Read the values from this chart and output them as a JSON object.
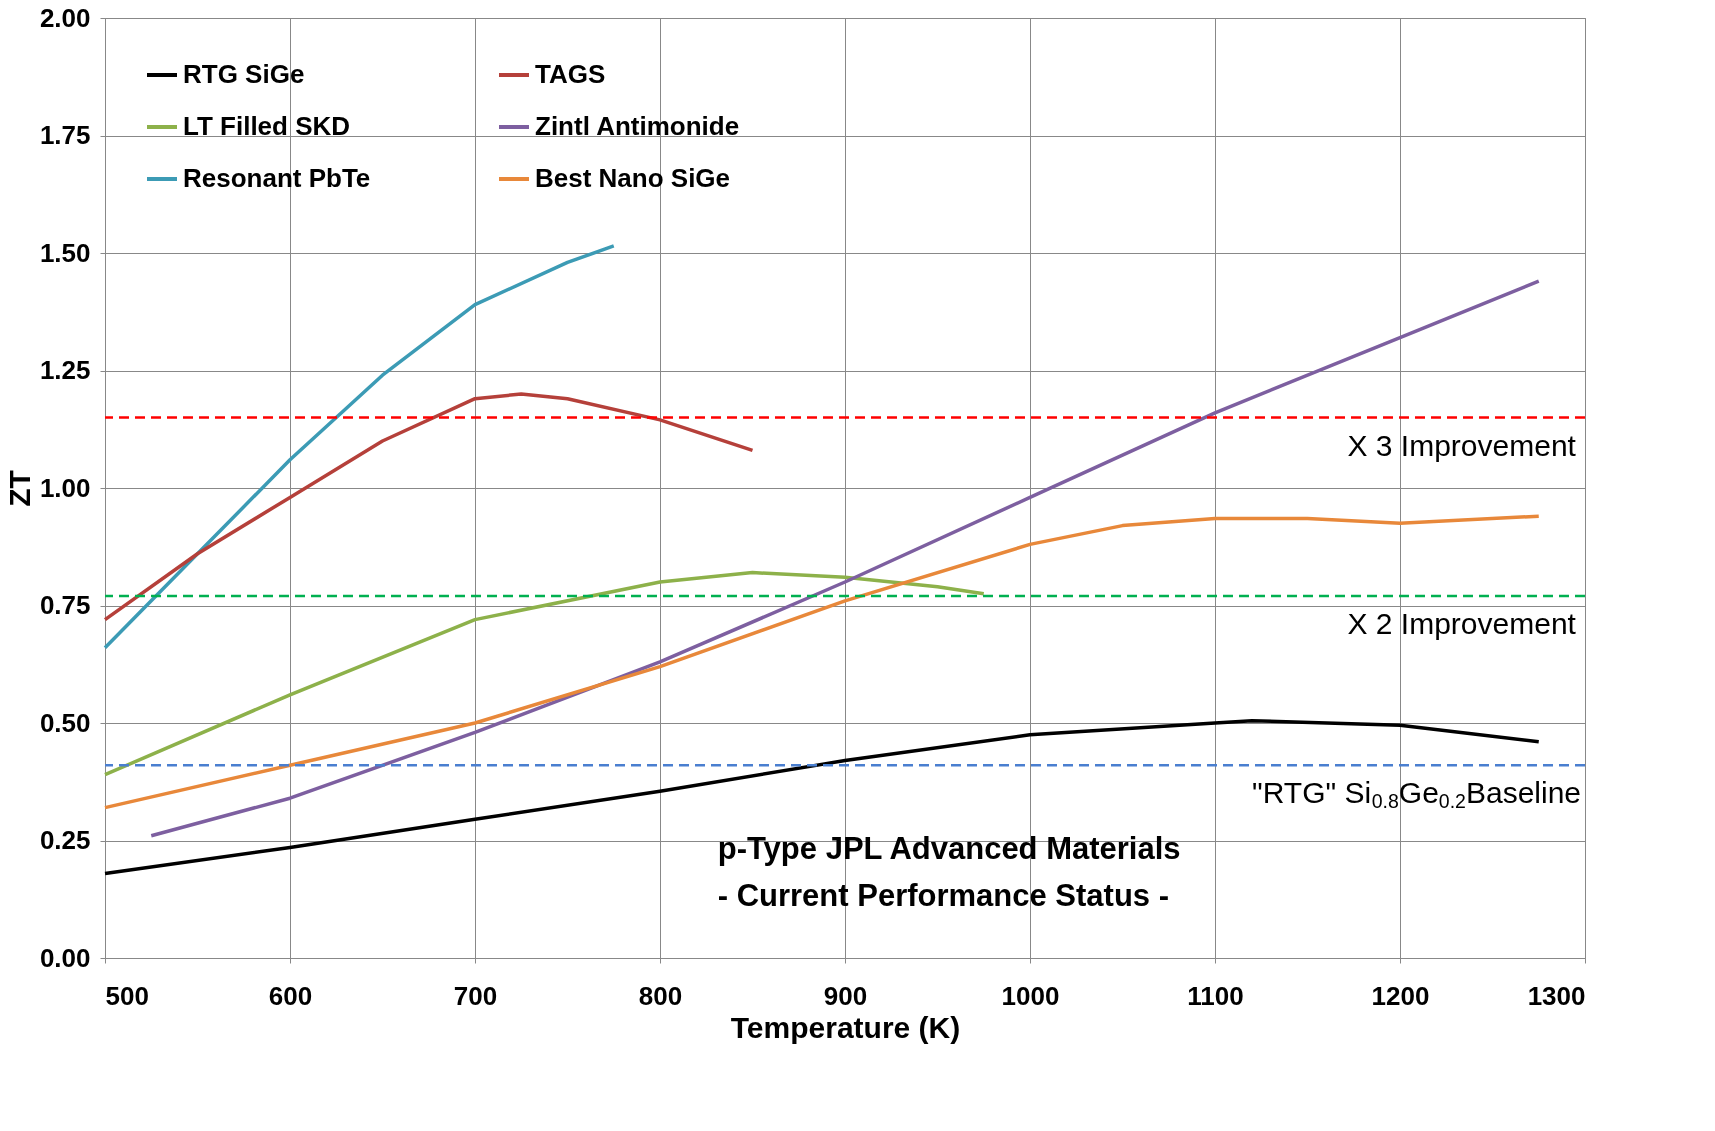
{
  "chart_data": {
    "type": "line",
    "title": "p-Type JPL Advanced Materials",
    "subtitle": "- Current Performance Status -",
    "xlabel": "Temperature (K)",
    "ylabel": "ZT",
    "xlim": [
      500,
      1300
    ],
    "xticks": [
      500,
      600,
      700,
      800,
      900,
      1000,
      1100,
      1200,
      1300
    ],
    "ylim": [
      0,
      2
    ],
    "yticks": [
      {
        "value": 0,
        "label": "0.00"
      },
      {
        "value": 0.25,
        "label": "0.25"
      },
      {
        "value": 0.5,
        "label": "0.50"
      },
      {
        "value": 0.75,
        "label": "0.75"
      },
      {
        "value": 1,
        "label": "1.00"
      },
      {
        "value": 1.25,
        "label": "1.25"
      },
      {
        "value": 1.5,
        "label": "1.50"
      },
      {
        "value": 1.75,
        "label": "1.75"
      },
      {
        "value": 2,
        "label": "2.00"
      }
    ],
    "grid": true,
    "legend": "top left",
    "marker": "none",
    "line_style": "solid",
    "series": [
      {
        "name": "RTG SiGe",
        "color": "#000000",
        "x": [
          500,
          600,
          700,
          800,
          900,
          1000,
          1100,
          1120,
          1200,
          1275
        ],
        "values": [
          0.18,
          0.235,
          0.295,
          0.355,
          0.42,
          0.475,
          0.5,
          0.505,
          0.495,
          0.46
        ]
      },
      {
        "name": "LT Filled SKD",
        "color": "#8db14a",
        "x": [
          500,
          600,
          700,
          800,
          850,
          900,
          950,
          975
        ],
        "values": [
          0.39,
          0.56,
          0.72,
          0.8,
          0.82,
          0.81,
          0.79,
          0.775
        ]
      },
      {
        "name": "Resonant PbTe",
        "color": "#3c9bb5",
        "x": [
          500,
          550,
          600,
          650,
          700,
          750,
          775
        ],
        "values": [
          0.66,
          0.86,
          1.06,
          1.24,
          1.39,
          1.48,
          1.515
        ]
      },
      {
        "name": "TAGS",
        "color": "#b5403a",
        "x": [
          500,
          550,
          600,
          650,
          700,
          725,
          750,
          800,
          850
        ],
        "values": [
          0.72,
          0.86,
          0.98,
          1.1,
          1.19,
          1.2,
          1.19,
          1.145,
          1.08
        ]
      },
      {
        "name": "Zintl Antimonide",
        "color": "#7d5fa0",
        "x": [
          525,
          600,
          700,
          800,
          900,
          1000,
          1100,
          1200,
          1275
        ],
        "values": [
          0.26,
          0.34,
          0.48,
          0.63,
          0.8,
          0.98,
          1.16,
          1.32,
          1.44
        ]
      },
      {
        "name": "Best Nano SiGe",
        "color": "#e8883a",
        "x": [
          500,
          600,
          700,
          800,
          900,
          1000,
          1050,
          1100,
          1150,
          1200,
          1275
        ],
        "values": [
          0.32,
          0.41,
          0.5,
          0.62,
          0.76,
          0.88,
          0.92,
          0.935,
          0.935,
          0.925,
          0.94
        ]
      }
    ],
    "ref_lines": [
      {
        "axis": "y",
        "value": 1.15,
        "label": "X 3 Improvement",
        "color": "#ff0000",
        "line_style": "dashed"
      },
      {
        "axis": "y",
        "value": 0.77,
        "label": "X 2 Improvement",
        "color": "#00b050",
        "line_style": "dashed"
      },
      {
        "axis": "y",
        "value": 0.41,
        "label": "\"RTG\" Si$_{0.8}$Ge$_{0.2}$Baseline",
        "color": "#4a7fd0",
        "line_style": "dashed"
      }
    ]
  }
}
